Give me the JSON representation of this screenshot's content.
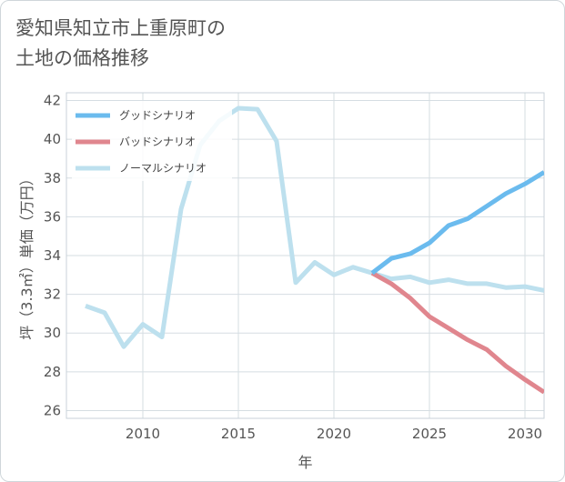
{
  "title": {
    "line1": "愛知県知立市上重原町の",
    "line2": "土地の価格推移"
  },
  "colors": {
    "good": "#6bbbee",
    "bad": "#e0868e",
    "normal": "#bde0ee",
    "grid": "#d5dde2",
    "plot_border": "#c8d2d8"
  },
  "chart_data": {
    "type": "line",
    "title": "愛知県知立市上重原町の土地の価格推移",
    "xlabel": "年",
    "ylabel": "坪（3.3㎡）単価（万円）",
    "xlim": [
      2006,
      2031
    ],
    "ylim": [
      25.6,
      42.4
    ],
    "xticks": [
      2010,
      2015,
      2020,
      2025,
      2030
    ],
    "yticks": [
      26,
      28,
      30,
      32,
      34,
      36,
      38,
      40,
      42
    ],
    "legend_position": "top-left",
    "series": [
      {
        "name": "グッドシナリオ",
        "color_key": "good",
        "x": [
          2022,
          2023,
          2024,
          2025,
          2026,
          2027,
          2028,
          2029,
          2030,
          2031
        ],
        "y": [
          33.1,
          33.85,
          34.1,
          34.65,
          35.55,
          35.9,
          36.55,
          37.2,
          37.7,
          38.3
        ]
      },
      {
        "name": "バッドシナリオ",
        "color_key": "bad",
        "x": [
          2022,
          2023,
          2024,
          2025,
          2026,
          2027,
          2028,
          2029,
          2030,
          2031
        ],
        "y": [
          33.1,
          32.55,
          31.8,
          30.85,
          30.25,
          29.65,
          29.15,
          28.3,
          27.6,
          26.95
        ]
      },
      {
        "name": "ノーマルシナリオ",
        "color_key": "normal",
        "x": [
          2007,
          2008,
          2009,
          2010,
          2011,
          2012,
          2013,
          2014,
          2015,
          2016,
          2017,
          2018,
          2019,
          2020,
          2021,
          2022,
          2023,
          2024,
          2025,
          2026,
          2027,
          2028,
          2029,
          2030,
          2031
        ],
        "y": [
          31.4,
          31.05,
          29.3,
          30.45,
          29.8,
          36.4,
          39.7,
          40.95,
          41.6,
          41.55,
          39.9,
          32.6,
          33.65,
          33.0,
          33.4,
          33.1,
          32.8,
          32.9,
          32.6,
          32.75,
          32.55,
          32.55,
          32.35,
          32.4,
          32.2
        ]
      }
    ]
  }
}
